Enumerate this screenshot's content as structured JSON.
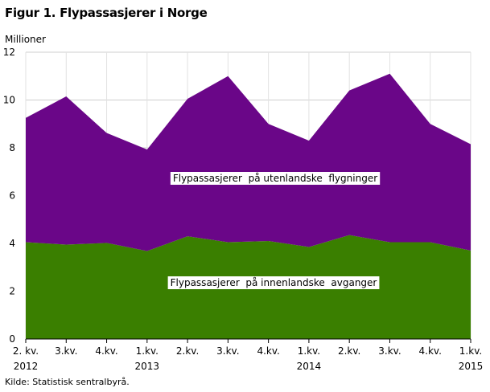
{
  "title": "Figur 1. Flypassasjerer i Norge",
  "source": "Kilde: Statistisk sentralbyrå.",
  "chart_data": {
    "type": "area",
    "stacked": true,
    "ylabel": "Millioner",
    "ylim": [
      0,
      12
    ],
    "yticks": [
      0,
      2,
      4,
      6,
      8,
      10,
      12
    ],
    "grid": true,
    "categories": [
      "2. kv.",
      "3.kv.",
      "4.kv.",
      "1.kv.",
      "2.kv.",
      "3.kv.",
      "4.kv.",
      "1.kv.",
      "2.kv.",
      "3.kv.",
      "4.kv.",
      "1.kv."
    ],
    "years": [
      {
        "label": "2012",
        "index": 0
      },
      {
        "label": "2013",
        "index": 3
      },
      {
        "label": "2014",
        "index": 7
      },
      {
        "label": "2015",
        "index": 11
      }
    ],
    "series": [
      {
        "name": "Flypassasjerer  på innenlandske  avganger",
        "color": "#3a7f00",
        "values": [
          4.05,
          3.95,
          4.02,
          3.68,
          4.3,
          4.05,
          4.1,
          3.85,
          4.35,
          4.05,
          4.05,
          3.7
        ]
      },
      {
        "name": "Flypassasjerer  på utenlandske  flygninger",
        "color": "#6a0688",
        "values": [
          5.2,
          6.2,
          4.6,
          4.25,
          5.75,
          6.95,
          4.9,
          4.45,
          6.05,
          7.05,
          4.95,
          4.45
        ]
      }
    ]
  }
}
